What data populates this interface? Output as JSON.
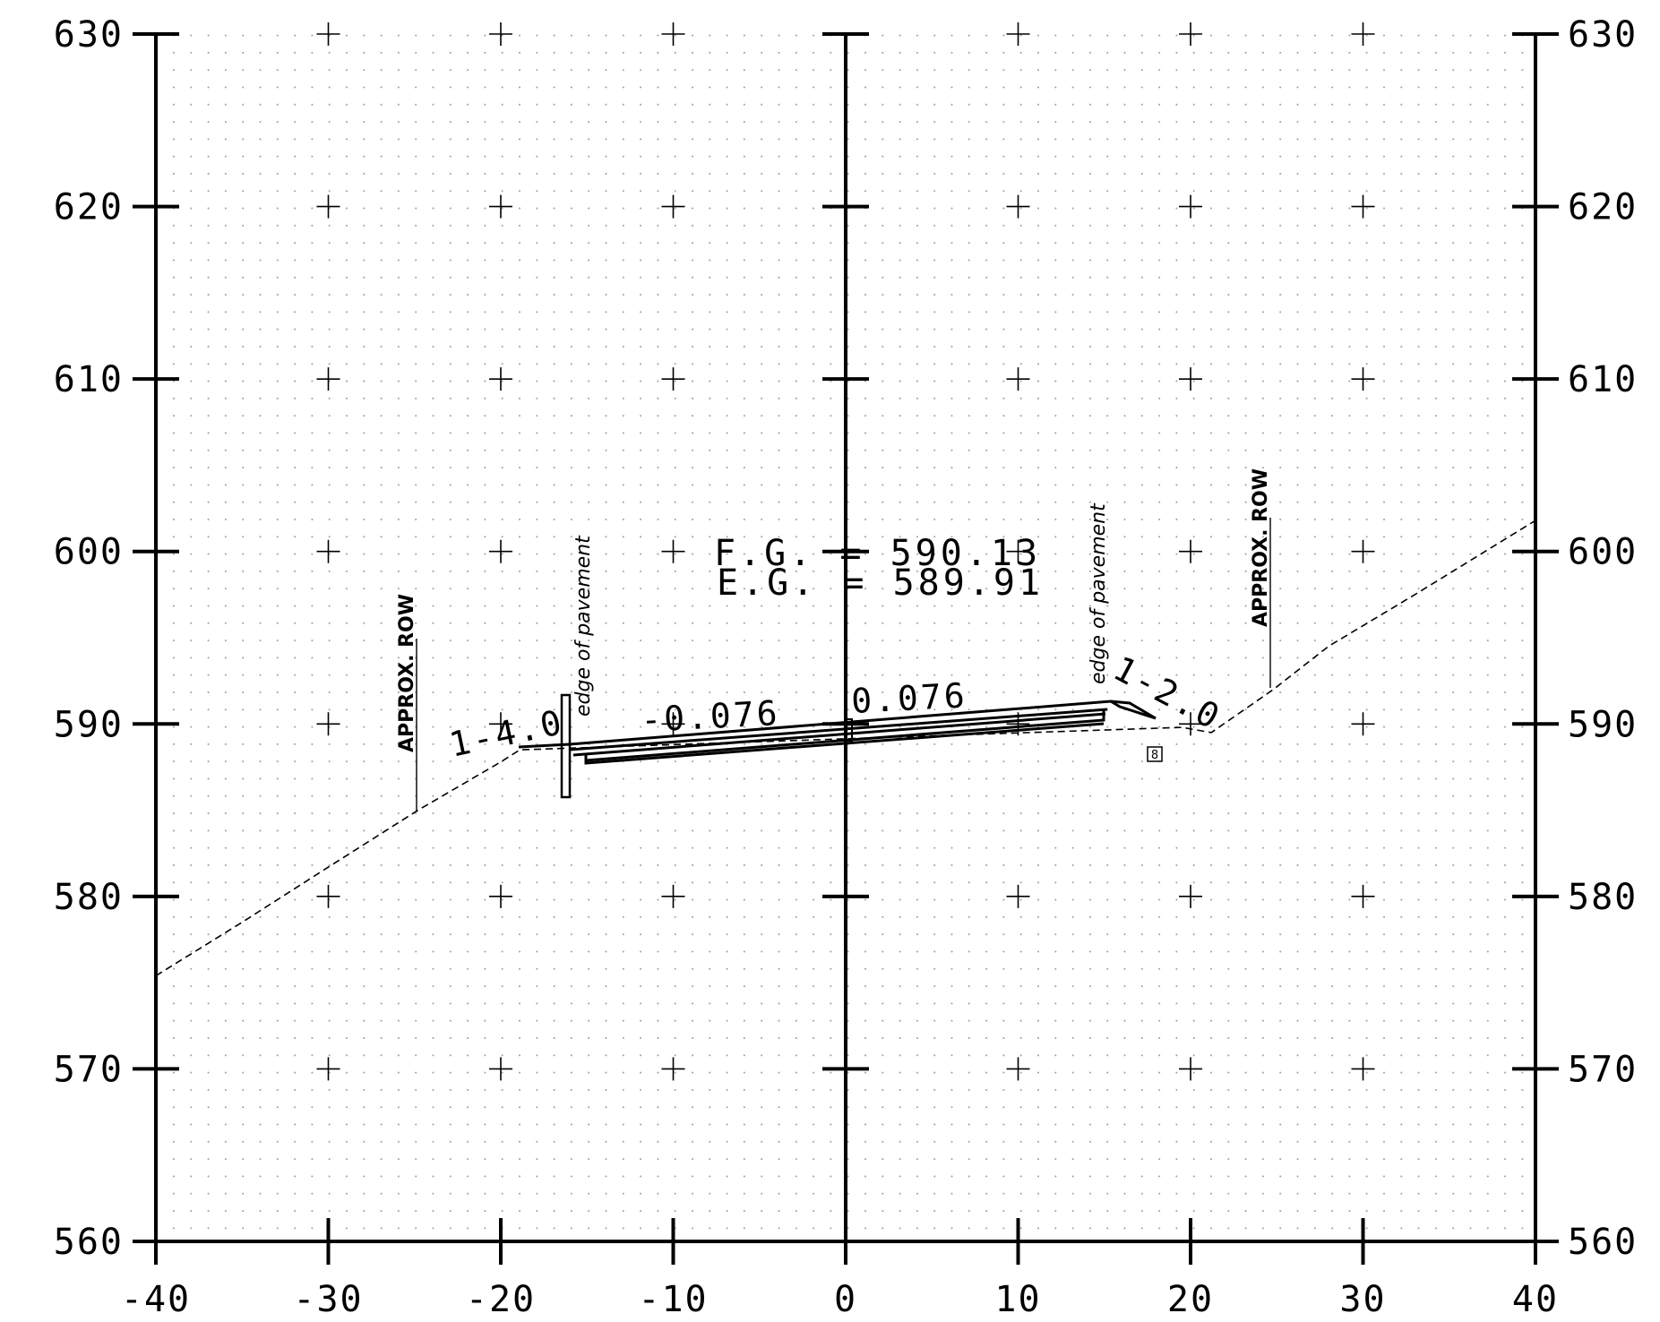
{
  "chart_data": {
    "type": "line",
    "xlim": [
      -40,
      40
    ],
    "ylim": [
      560,
      630
    ],
    "x_ticks": [
      -40,
      -30,
      -20,
      -10,
      0,
      10,
      20,
      30,
      40
    ],
    "y_ticks": [
      560,
      570,
      580,
      590,
      600,
      610,
      620,
      630
    ],
    "x_tick_labels": [
      "-40",
      "-30",
      "-20",
      "-10",
      "0",
      "10",
      "20",
      "30",
      "40"
    ],
    "y_tick_labels": [
      "560",
      "570",
      "580",
      "590",
      "600",
      "610",
      "620",
      "630"
    ],
    "grid": "dotted",
    "series": [
      {
        "style": "dashed",
        "x": [
          -40,
          -35,
          -30,
          -24.8,
          -20,
          -18.9,
          19.5,
          21.2,
          24.8,
          28,
          33,
          40
        ],
        "y": [
          575.4,
          578.5,
          581.7,
          585,
          587.8,
          588.5,
          589.8,
          589.5,
          592,
          594.5,
          597.5,
          601.8
        ]
      },
      {
        "style": "solid",
        "x": [
          -18.9,
          -16.2,
          -15,
          0,
          16,
          18
        ],
        "y": [
          588.5,
          588.7,
          588.8,
          589.8,
          591.1,
          590.3
        ]
      }
    ],
    "annotations": {
      "fg": "F.G. = 590.13",
      "eg": "E.G.  = 589.91",
      "slope_left": "1-4.0",
      "slope_right": "1-2.0",
      "crossfall_left": "-0.076",
      "crossfall_right": "0.076",
      "edge_left": "edge of pavement",
      "edge_right": "edge of pavement",
      "row_left": "APPROX. ROW",
      "row_right": "APPROX. ROW",
      "marker": "8"
    }
  }
}
